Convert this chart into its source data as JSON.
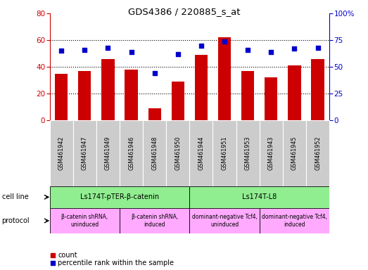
{
  "title": "GDS4386 / 220885_s_at",
  "samples": [
    "GSM461942",
    "GSM461947",
    "GSM461949",
    "GSM461946",
    "GSM461948",
    "GSM461950",
    "GSM461944",
    "GSM461951",
    "GSM461953",
    "GSM461943",
    "GSM461945",
    "GSM461952"
  ],
  "counts": [
    35,
    37,
    46,
    38,
    9,
    29,
    49,
    62,
    37,
    32,
    41,
    46
  ],
  "percentiles": [
    65,
    66,
    68,
    64,
    44,
    62,
    70,
    74,
    66,
    64,
    67,
    68
  ],
  "ylim_left": [
    0,
    80
  ],
  "ylim_right": [
    0,
    100
  ],
  "yticks_left": [
    0,
    20,
    40,
    60,
    80
  ],
  "yticks_right": [
    0,
    25,
    50,
    75,
    100
  ],
  "bar_color": "#cc0000",
  "dot_color": "#0000cc",
  "cell_line_groups": [
    {
      "label": "Ls174T-pTER-β-catenin",
      "start": 0,
      "end": 6,
      "color": "#90ee90"
    },
    {
      "label": "Ls174T-L8",
      "start": 6,
      "end": 12,
      "color": "#90ee90"
    }
  ],
  "protocol_groups": [
    {
      "label": "β-catenin shRNA,\nuninduced",
      "start": 0,
      "end": 3,
      "color": "#ffaaff"
    },
    {
      "label": "β-catenin shRNA,\ninduced",
      "start": 3,
      "end": 6,
      "color": "#ffaaff"
    },
    {
      "label": "dominant-negative Tcf4,\nuninduced",
      "start": 6,
      "end": 9,
      "color": "#ffaaff"
    },
    {
      "label": "dominant-negative Tcf4,\ninduced",
      "start": 9,
      "end": 12,
      "color": "#ffaaff"
    }
  ],
  "tick_bg_color": "#cccccc",
  "legend_count_color": "#cc0000",
  "legend_dot_color": "#0000cc",
  "fig_width": 5.23,
  "fig_height": 3.84
}
